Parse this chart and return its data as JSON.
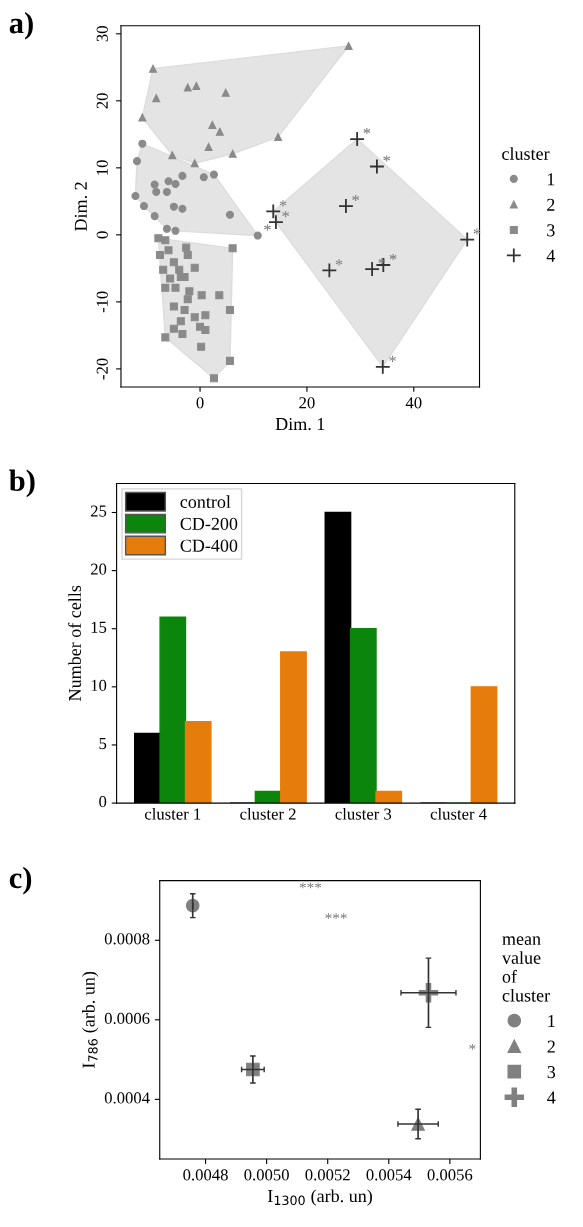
{
  "chart_data": [
    {
      "type": "scatter",
      "title": "a)",
      "xlabel": "Dim. 1",
      "ylabel": "Dim. 2",
      "legend_title": "cluster",
      "legend": "right",
      "grid": false,
      "xlim": [
        -14.8,
        52.3
      ],
      "ylim": [
        -22.7,
        31.2
      ],
      "xticks": [
        0,
        20,
        40
      ],
      "yticks": [
        -20,
        -10,
        0,
        10,
        20,
        30
      ],
      "series": [
        {
          "name": "1",
          "color": "#8a8a8a",
          "marker": "circle",
          "x": [
            -10.8,
            -11.8,
            -12.1,
            -10.5,
            -8.5,
            -8.5,
            -8.2,
            -5.9,
            -4.6,
            -6.2,
            -3.3,
            -4.9,
            -3.3,
            0.7,
            2.6,
            -6.2,
            -4.6,
            10.8,
            5.6
          ],
          "values": [
            13.6,
            11.0,
            5.8,
            4.3,
            2.8,
            7.5,
            6.4,
            8.0,
            7.6,
            6.4,
            8.8,
            4.2,
            3.9,
            8.6,
            9.0,
            0.9,
            0.6,
            -0.1,
            3.0
          ]
        },
        {
          "name": "2",
          "color": "#8a8a8a",
          "marker": "triangle",
          "x": [
            -8.8,
            -8.2,
            -2.3,
            -0.7,
            4.8,
            -10.8,
            2.3,
            3.7,
            1.6,
            6.1,
            -1.0,
            14.6,
            27.8,
            -5.2
          ],
          "values": [
            24.8,
            20.4,
            22.0,
            22.2,
            21.2,
            17.5,
            16.4,
            15.4,
            13.1,
            12.1,
            10.7,
            14.6,
            28.2,
            11.9
          ]
        },
        {
          "name": "3",
          "color": "#8a8a8a",
          "marker": "square",
          "x": [
            -7.8,
            -6.5,
            -7.5,
            -5.9,
            -2.6,
            -2.3,
            6.1,
            -6.9,
            -4.9,
            -3.9,
            -2.9,
            -1.0,
            -6.5,
            -4.6,
            -2.0,
            0.3,
            3.6,
            -4.9,
            -2.9,
            -1.0,
            1.0,
            5.6,
            -4.9,
            -3.3,
            1.0,
            -6.5,
            0.2,
            5.6,
            2.6,
            -3.6,
            -5.6,
            -2.3,
            -3.6,
            0.0
          ],
          "values": [
            -0.5,
            -0.8,
            -3.0,
            -2.3,
            -1.9,
            -3.0,
            -2.0,
            -5.2,
            -4.1,
            -5.2,
            -6.3,
            -4.9,
            -7.9,
            -7.9,
            -8.4,
            -9.0,
            -9.0,
            -10.7,
            -11.2,
            -12.3,
            -12.0,
            -11.2,
            -14.0,
            -14.8,
            -14.2,
            -15.3,
            -16.7,
            -18.8,
            -21.4,
            -6.3,
            -6.5,
            -9.6,
            -12.9,
            -13.7
          ]
        },
        {
          "name": "4",
          "color": "#333333",
          "marker": "cross",
          "x": [
            29.4,
            33.1,
            27.3,
            13.7,
            14.2,
            24.2,
            32.2,
            34.3,
            50.0,
            34.2
          ],
          "values": [
            14.3,
            10.2,
            4.3,
            3.5,
            1.9,
            -5.3,
            -5.1,
            -4.5,
            -0.7,
            -19.7
          ]
        }
      ],
      "annotations": [
        {
          "text": "*",
          "x": 29.4,
          "y": 14.3
        },
        {
          "text": "*",
          "x": 33.1,
          "y": 10.2
        },
        {
          "text": "*",
          "x": 27.3,
          "y": 4.3
        },
        {
          "text": "*",
          "x": 13.7,
          "y": 3.5
        },
        {
          "text": "*",
          "x": 14.2,
          "y": 1.9
        },
        {
          "text": "*",
          "x": 24.2,
          "y": -5.3
        },
        {
          "text": "*",
          "x": 32.2,
          "y": -5.1
        },
        {
          "text": "*",
          "x": 34.3,
          "y": -4.5
        },
        {
          "text": "*",
          "x": 50.0,
          "y": -0.7
        },
        {
          "text": "*",
          "x": 34.2,
          "y": -19.7
        },
        {
          "text": "*",
          "x": 10.8,
          "y": -0.1
        }
      ]
    },
    {
      "type": "bar",
      "title": "b)",
      "ylabel": "Number of cells",
      "legend": "top left",
      "grid": false,
      "categories": [
        "cluster 1",
        "cluster 2",
        "cluster 3",
        "cluster 4"
      ],
      "ylim": [
        0,
        27.5
      ],
      "yticks": [
        0,
        5,
        10,
        15,
        20,
        25
      ],
      "series": [
        {
          "name": "control",
          "color": "#000000",
          "values": [
            6,
            0,
            25,
            0
          ]
        },
        {
          "name": "CD-200",
          "color": "#0c850c",
          "values": [
            16,
            1,
            15,
            0
          ]
        },
        {
          "name": "CD-400",
          "color": "#e67c0c",
          "values": [
            7,
            13,
            1,
            10
          ]
        }
      ]
    },
    {
      "type": "scatter",
      "title": "c)",
      "xlabel": "I$_{1300}$ (arb. un)",
      "ylabel": "I$_{786}$ (arb. un)",
      "legend_title": "mean\nvalue\nof\ncluster",
      "legend": "right",
      "grid": false,
      "xlim": [
        0.00465,
        0.0057
      ],
      "ylim": [
        0.00025,
        0.00095
      ],
      "xticks": [
        0.0048,
        {
          "value": 0.005,
          "label": "0.0050"
        },
        0.0052,
        0.0054,
        0.0056
      ],
      "yticks": [
        0.0004,
        0.0006,
        0.0008
      ],
      "series": [
        {
          "name": "1",
          "color": "#808080",
          "marker": "circle",
          "x": [
            0.004758
          ],
          "values": [
            0.000887
          ],
          "errors": [
            3e-05
          ],
          "xerrors": [
            null
          ]
        },
        {
          "name": "2",
          "color": "#808080",
          "marker": "triangle",
          "x": [
            0.005496
          ],
          "values": [
            0.000338
          ],
          "errors": [
            3.7e-05
          ],
          "xerrors": [
            6.6e-05
          ]
        },
        {
          "name": "3",
          "color": "#808080",
          "marker": "square",
          "x": [
            0.004955
          ],
          "values": [
            0.000475
          ],
          "errors": [
            3.4e-05
          ],
          "xerrors": [
            3.7e-05
          ]
        },
        {
          "name": "4",
          "color": "#808080",
          "marker": "cross",
          "x": [
            0.00553
          ],
          "values": [
            0.000668
          ],
          "errors": [
            8.7e-05
          ],
          "xerrors": [
            9e-05
          ]
        }
      ],
      "annotations": [
        "***",
        "***",
        "*"
      ]
    }
  ]
}
